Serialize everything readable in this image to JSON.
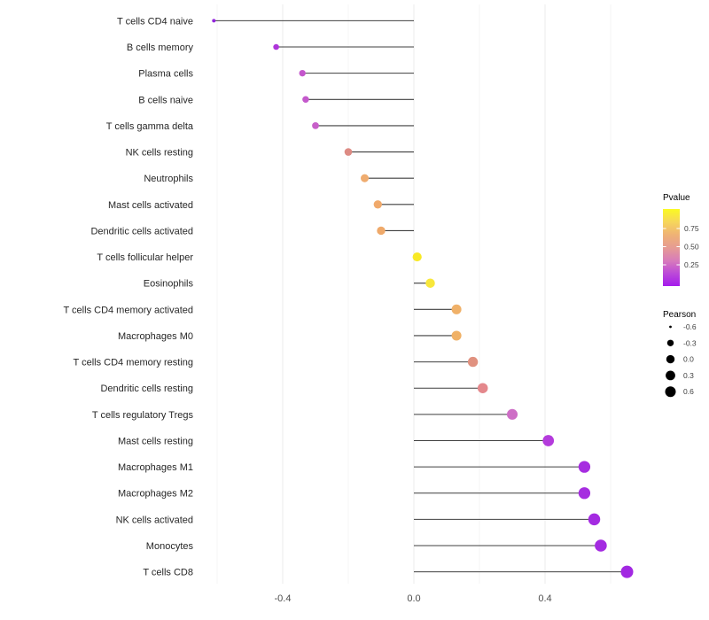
{
  "chart_data": {
    "type": "lollipop",
    "title": "",
    "xlabel": "",
    "ylabel": "",
    "xlim": [
      -0.65,
      0.69
    ],
    "x_ticks": [
      {
        "value": -0.4,
        "label": "-0.4"
      },
      {
        "value": 0.0,
        "label": "0.0"
      },
      {
        "value": 0.4,
        "label": "0.4"
      }
    ],
    "grid_major": [
      -0.4,
      0.0,
      0.4
    ],
    "grid_minor": [
      -0.6,
      -0.2,
      0.2,
      0.6
    ],
    "points": [
      {
        "category": "T cells CD4 naive",
        "pearson": -0.61,
        "color": "#9326DC"
      },
      {
        "category": "B cells memory",
        "pearson": -0.42,
        "color": "#AE35DA"
      },
      {
        "category": "Plasma cells",
        "pearson": -0.34,
        "color": "#C456CC"
      },
      {
        "category": "B cells naive",
        "pearson": -0.33,
        "color": "#C459CC"
      },
      {
        "category": "T cells gamma delta",
        "pearson": -0.3,
        "color": "#C75FC9"
      },
      {
        "category": "NK cells resting",
        "pearson": -0.2,
        "color": "#DD8B84"
      },
      {
        "category": "Neutrophils",
        "pearson": -0.15,
        "color": "#EFAC6F"
      },
      {
        "category": "Mast cells activated",
        "pearson": -0.11,
        "color": "#F0A96B"
      },
      {
        "category": "Dendritic cells activated",
        "pearson": -0.1,
        "color": "#EFA96A"
      },
      {
        "category": "T cells follicular helper",
        "pearson": 0.01,
        "color": "#F8E926"
      },
      {
        "category": "Eosinophils",
        "pearson": 0.05,
        "color": "#F8E73B"
      },
      {
        "category": "T cells CD4 memory activated",
        "pearson": 0.13,
        "color": "#F0B169"
      },
      {
        "category": "Macrophages M0",
        "pearson": 0.13,
        "color": "#F0B166"
      },
      {
        "category": "T cells CD4 memory resting",
        "pearson": 0.18,
        "color": "#E0917F"
      },
      {
        "category": "Dendritic cells resting",
        "pearson": 0.21,
        "color": "#E4888C"
      },
      {
        "category": "T cells regulatory  Tregs",
        "pearson": 0.3,
        "color": "#CE6EC6"
      },
      {
        "category": "Mast cells resting",
        "pearson": 0.41,
        "color": "#B43BDC"
      },
      {
        "category": "Macrophages M1",
        "pearson": 0.52,
        "color": "#A62DE0"
      },
      {
        "category": "Macrophages M2",
        "pearson": 0.52,
        "color": "#A62DE0"
      },
      {
        "category": "NK cells activated",
        "pearson": 0.55,
        "color": "#A42BE1"
      },
      {
        "category": "Monocytes",
        "pearson": 0.57,
        "color": "#A42BE1"
      },
      {
        "category": "T cells CD8",
        "pearson": 0.65,
        "color": "#A228E2"
      }
    ],
    "legend_pvalue": {
      "title": "Pvalue",
      "tick_labels": [
        "0.75",
        "0.50",
        "0.25"
      ],
      "gradient_stops": [
        "#FAFA21",
        "#F6D65B",
        "#EFB275",
        "#E69C93",
        "#D87CBA",
        "#BC4AD8",
        "#A51BEC"
      ]
    },
    "legend_pearson": {
      "title": "Pearson",
      "entries": [
        {
          "value": -0.6,
          "label": "-0.6"
        },
        {
          "value": -0.3,
          "label": "-0.3"
        },
        {
          "value": 0.0,
          "label": "0.0"
        },
        {
          "value": 0.3,
          "label": "0.3"
        },
        {
          "value": 0.6,
          "label": "0.6"
        }
      ]
    }
  }
}
